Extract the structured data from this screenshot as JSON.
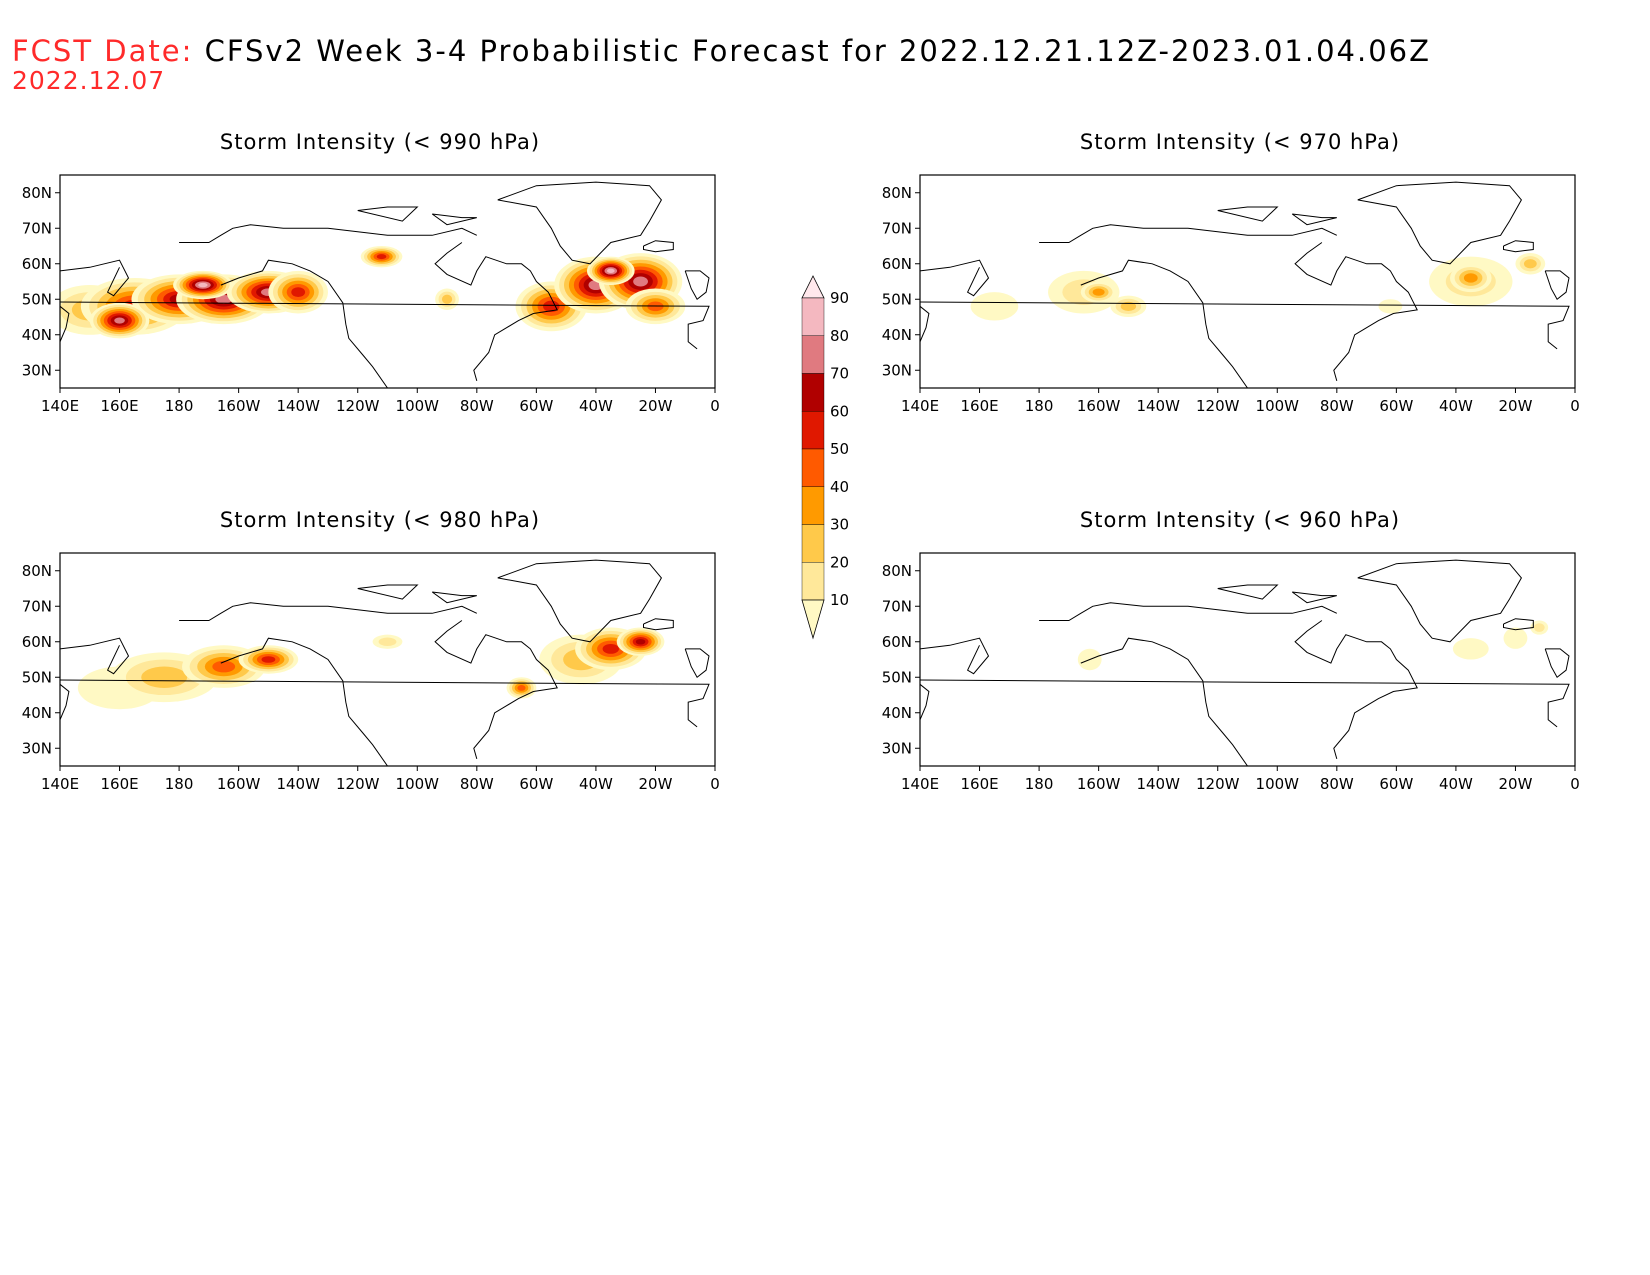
{
  "header": {
    "label": "FCST Date:",
    "title": "CFSv2 Week 3-4 Probabilistic Forecast for 2022.12.21.12Z-2023.01.04.06Z",
    "date": "2022.12.07"
  },
  "lat_ticks": [
    "80N",
    "70N",
    "60N",
    "50N",
    "40N",
    "30N"
  ],
  "lon_ticks": [
    "140E",
    "160E",
    "180",
    "160W",
    "140W",
    "120W",
    "100W",
    "80W",
    "60W",
    "40W",
    "20W",
    "0"
  ],
  "panels": [
    {
      "id": "p990",
      "title": "Storm Intensity (< 990 hPa)"
    },
    {
      "id": "p970",
      "title": "Storm Intensity (< 970 hPa)"
    },
    {
      "id": "p980",
      "title": "Storm Intensity (< 980 hPa)"
    },
    {
      "id": "p960",
      "title": "Storm Intensity (< 960 hPa)"
    }
  ],
  "colorbar": {
    "levels": [
      "10",
      "20",
      "30",
      "40",
      "50",
      "60",
      "70",
      "80",
      "90"
    ],
    "colors": [
      "#fff9c4",
      "#ffe89a",
      "#ffc94a",
      "#ff9a00",
      "#ff5a00",
      "#e01800",
      "#b00000",
      "#e07a80",
      "#f4b8c0",
      "#ffe8ec"
    ]
  },
  "fields": {
    "p990": [
      {
        "lon": 150,
        "lat": 47,
        "rx": 14,
        "ry": 7,
        "lvl": 3
      },
      {
        "lon": 165,
        "lat": 48,
        "rx": 18,
        "ry": 8,
        "lvl": 6
      },
      {
        "lon": 180,
        "lat": 50,
        "rx": 16,
        "ry": 7,
        "lvl": 7
      },
      {
        "lon": -165,
        "lat": 50,
        "rx": 16,
        "ry": 7,
        "lvl": 8
      },
      {
        "lon": -150,
        "lat": 52,
        "rx": 14,
        "ry": 6,
        "lvl": 8
      },
      {
        "lon": -140,
        "lat": 52,
        "rx": 10,
        "ry": 6,
        "lvl": 6
      },
      {
        "lon": 160,
        "lat": 44,
        "rx": 10,
        "ry": 5,
        "lvl": 8
      },
      {
        "lon": -172,
        "lat": 54,
        "rx": 10,
        "ry": 4,
        "lvl": 9
      },
      {
        "lon": -112,
        "lat": 62,
        "rx": 7,
        "ry": 3,
        "lvl": 6
      },
      {
        "lon": -90,
        "lat": 50,
        "rx": 4,
        "ry": 3,
        "lvl": 3
      },
      {
        "lon": -55,
        "lat": 48,
        "rx": 12,
        "ry": 7,
        "lvl": 6
      },
      {
        "lon": -40,
        "lat": 54,
        "rx": 14,
        "ry": 8,
        "lvl": 8
      },
      {
        "lon": -25,
        "lat": 55,
        "rx": 14,
        "ry": 8,
        "lvl": 8
      },
      {
        "lon": -20,
        "lat": 48,
        "rx": 10,
        "ry": 5,
        "lvl": 5
      },
      {
        "lon": -35,
        "lat": 58,
        "rx": 8,
        "ry": 4,
        "lvl": 9
      }
    ],
    "p970": [
      {
        "lon": 165,
        "lat": 48,
        "rx": 8,
        "ry": 4,
        "lvl": 1
      },
      {
        "lon": -165,
        "lat": 52,
        "rx": 12,
        "ry": 6,
        "lvl": 2
      },
      {
        "lon": -160,
        "lat": 52,
        "rx": 6,
        "ry": 3,
        "lvl": 4
      },
      {
        "lon": -150,
        "lat": 48,
        "rx": 6,
        "ry": 3,
        "lvl": 3
      },
      {
        "lon": -35,
        "lat": 55,
        "rx": 14,
        "ry": 7,
        "lvl": 2
      },
      {
        "lon": -35,
        "lat": 56,
        "rx": 7,
        "ry": 4,
        "lvl": 4
      },
      {
        "lon": -15,
        "lat": 60,
        "rx": 5,
        "ry": 3,
        "lvl": 3
      },
      {
        "lon": -62,
        "lat": 48,
        "rx": 4,
        "ry": 2,
        "lvl": 1
      }
    ],
    "p980": [
      {
        "lon": 160,
        "lat": 47,
        "rx": 14,
        "ry": 6,
        "lvl": 1
      },
      {
        "lon": 175,
        "lat": 50,
        "rx": 18,
        "ry": 7,
        "lvl": 3
      },
      {
        "lon": -165,
        "lat": 53,
        "rx": 14,
        "ry": 6,
        "lvl": 5
      },
      {
        "lon": -150,
        "lat": 55,
        "rx": 10,
        "ry": 4,
        "lvl": 6
      },
      {
        "lon": -110,
        "lat": 60,
        "rx": 5,
        "ry": 2,
        "lvl": 2
      },
      {
        "lon": -45,
        "lat": 55,
        "rx": 14,
        "ry": 7,
        "lvl": 3
      },
      {
        "lon": -35,
        "lat": 58,
        "rx": 12,
        "ry": 6,
        "lvl": 6
      },
      {
        "lon": -25,
        "lat": 60,
        "rx": 8,
        "ry": 4,
        "lvl": 7
      },
      {
        "lon": -65,
        "lat": 47,
        "rx": 5,
        "ry": 3,
        "lvl": 5
      }
    ],
    "p960": [
      {
        "lon": -163,
        "lat": 55,
        "rx": 4,
        "ry": 3,
        "lvl": 1
      },
      {
        "lon": -35,
        "lat": 58,
        "rx": 6,
        "ry": 3,
        "lvl": 1
      },
      {
        "lon": -20,
        "lat": 61,
        "rx": 4,
        "ry": 3,
        "lvl": 1
      },
      {
        "lon": -12,
        "lat": 64,
        "rx": 3,
        "ry": 2,
        "lvl": 2
      }
    ]
  }
}
